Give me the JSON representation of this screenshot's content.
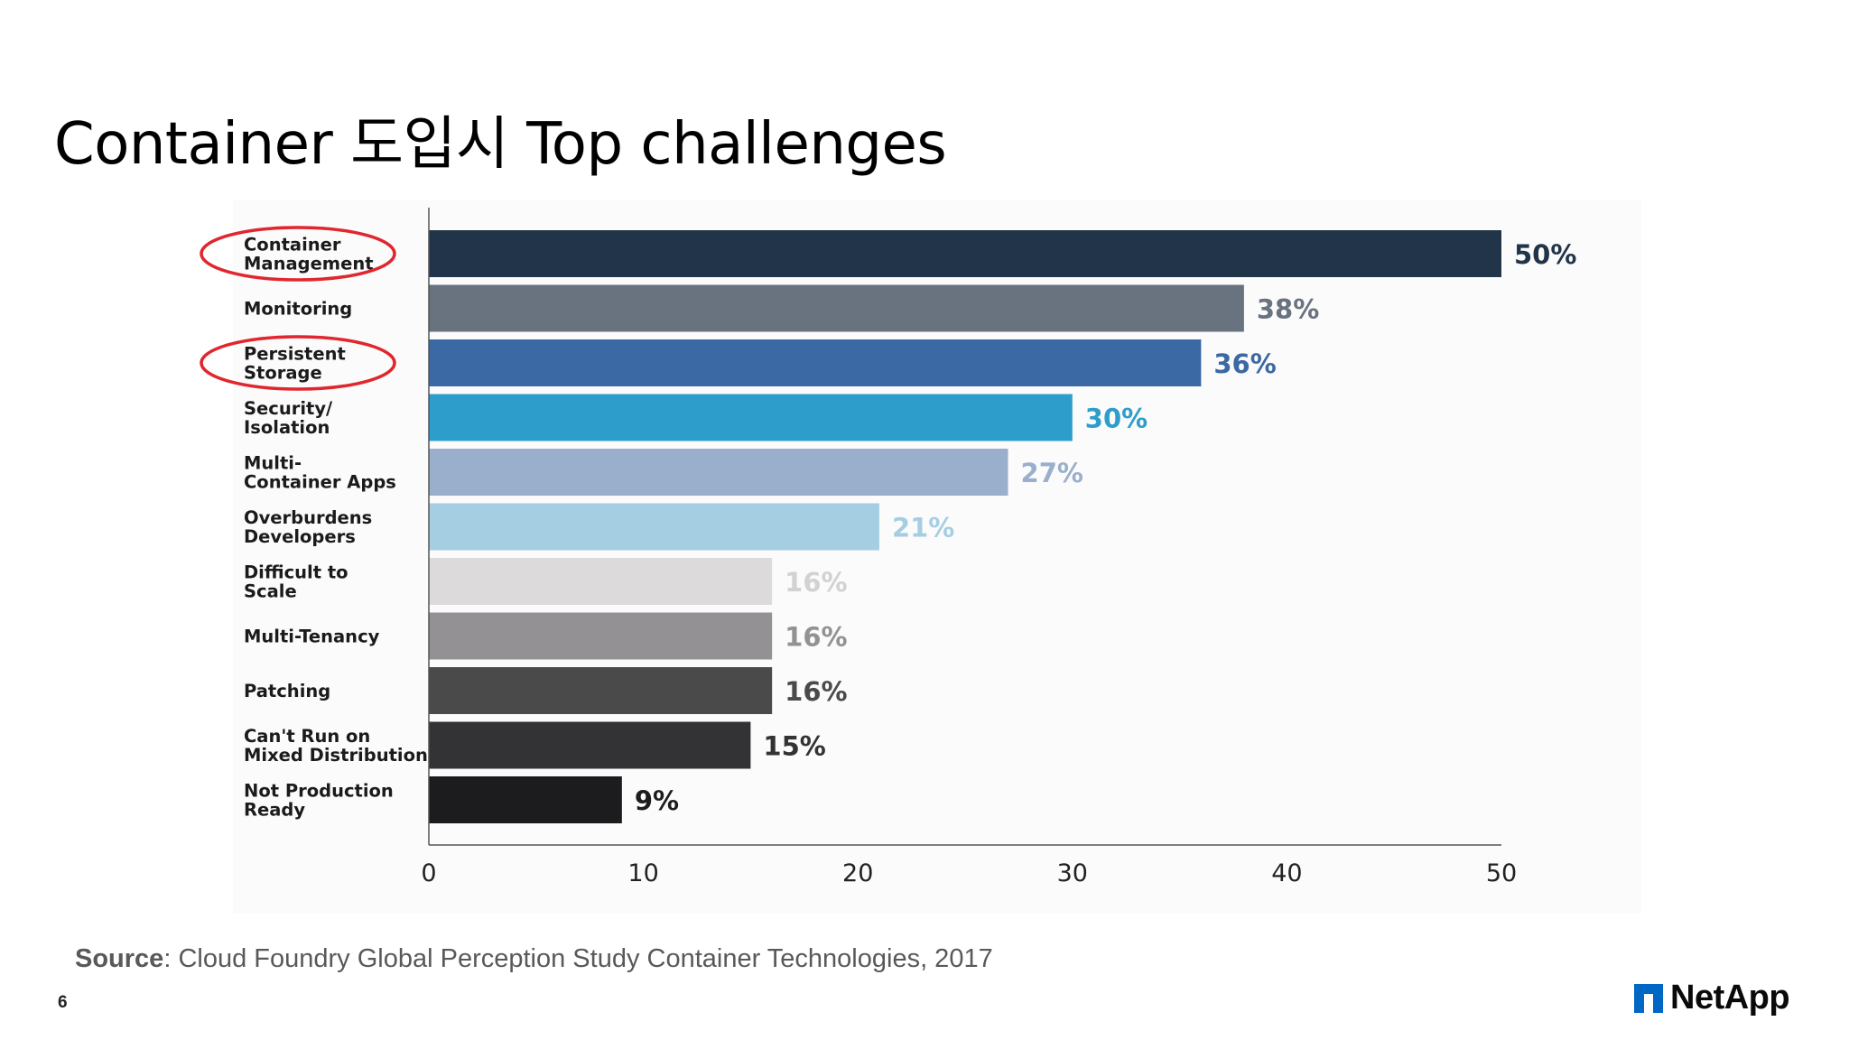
{
  "slide": {
    "title": "Container 도입시 Top challenges",
    "source_label": "Source",
    "source_text": ": Cloud Foundry Global Perception Study Container Technologies, 2017",
    "page_number": "6",
    "logo_text": "NetApp"
  },
  "chart_data": {
    "type": "bar",
    "orientation": "horizontal",
    "categories": [
      [
        "Container",
        "Management"
      ],
      [
        "Monitoring"
      ],
      [
        "Persistent",
        "Storage"
      ],
      [
        "Security/",
        "Isolation"
      ],
      [
        "Multi-",
        "Container Apps"
      ],
      [
        "Overburdens",
        "Developers"
      ],
      [
        "Difficult to",
        "Scale"
      ],
      [
        "Multi-Tenancy"
      ],
      [
        "Patching"
      ],
      [
        "Can't Run on",
        "Mixed Distribution"
      ],
      [
        "Not Production",
        "Ready"
      ]
    ],
    "values": [
      50,
      38,
      36,
      30,
      27,
      21,
      16,
      16,
      16,
      15,
      9
    ],
    "value_labels": [
      "50%",
      "38%",
      "36%",
      "30%",
      "27%",
      "21%",
      "16%",
      "16%",
      "16%",
      "15%",
      "9%"
    ],
    "bar_colors": [
      "#213449",
      "#69727f",
      "#3b69a3",
      "#2d9ecb",
      "#9aafcc",
      "#a6cee3",
      "#dcdadb",
      "#939193",
      "#4b4a4b",
      "#333234",
      "#1c1b1d"
    ],
    "label_colors": [
      "#213449",
      "#69727f",
      "#3b69a3",
      "#2d9ecb",
      "#9aafcc",
      "#a6cee3",
      "#d3d1d2",
      "#939193",
      "#4b4a4b",
      "#333234",
      "#1c1b1d"
    ],
    "highlighted": [
      "Container Management",
      "Persistent Storage"
    ],
    "highlight_color": "#e0262e",
    "xlim": [
      0,
      50
    ],
    "xticks": [
      "0",
      "10",
      "20",
      "30",
      "40",
      "50"
    ],
    "xlabel": "",
    "ylabel": "",
    "grid": false,
    "legend": "none"
  }
}
